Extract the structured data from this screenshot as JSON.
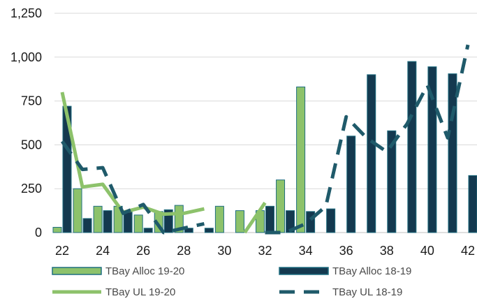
{
  "chart_data": {
    "type": "bar",
    "title": "",
    "xlabel": "",
    "ylabel": "",
    "x": [
      22,
      23,
      24,
      25,
      26,
      27,
      28,
      29,
      30,
      31,
      32,
      33,
      34,
      35,
      36,
      37,
      38,
      39,
      40,
      41,
      42
    ],
    "x_tick_labels": [
      "22",
      "24",
      "26",
      "28",
      "30",
      "32",
      "34",
      "36",
      "38",
      "40",
      "42"
    ],
    "xlim": [
      21.5,
      42.5
    ],
    "y_tick_labels": [
      "0",
      "250",
      "500",
      "750",
      "1,000",
      "1,250"
    ],
    "ylim": [
      0,
      1250
    ],
    "grid": true,
    "legend_position": "bottom",
    "series": [
      {
        "name": "TBay Alloc 19-20",
        "type": "bar",
        "color": "#8DC26B",
        "edge_color": "#1F6E80",
        "values": [
          30,
          250,
          150,
          150,
          100,
          120,
          155,
          null,
          150,
          125,
          125,
          300,
          830,
          null,
          null,
          null,
          null,
          null,
          null,
          null,
          null
        ]
      },
      {
        "name": "TBay Alloc 18-19",
        "type": "bar",
        "color": "#14394F",
        "edge_color": "#1F6E80",
        "values": [
          720,
          80,
          125,
          120,
          25,
          130,
          25,
          25,
          null,
          null,
          150,
          125,
          120,
          135,
          550,
          900,
          580,
          975,
          945,
          905,
          325
        ]
      },
      {
        "name": "TBay UL 19-20",
        "type": "line",
        "color": "#8DC26B",
        "dashed": false,
        "values": [
          800,
          260,
          275,
          115,
          145,
          105,
          110,
          135,
          null,
          0,
          170,
          null,
          null,
          null,
          null,
          null,
          null,
          null,
          null,
          null,
          null
        ]
      },
      {
        "name": "TBay UL 18-19",
        "type": "line",
        "color": "#1F5A6A",
        "dashed": true,
        "values": [
          520,
          360,
          370,
          110,
          160,
          0,
          25,
          50,
          null,
          null,
          0,
          0,
          50,
          150,
          660,
          540,
          460,
          620,
          840,
          540,
          1070
        ]
      }
    ]
  }
}
